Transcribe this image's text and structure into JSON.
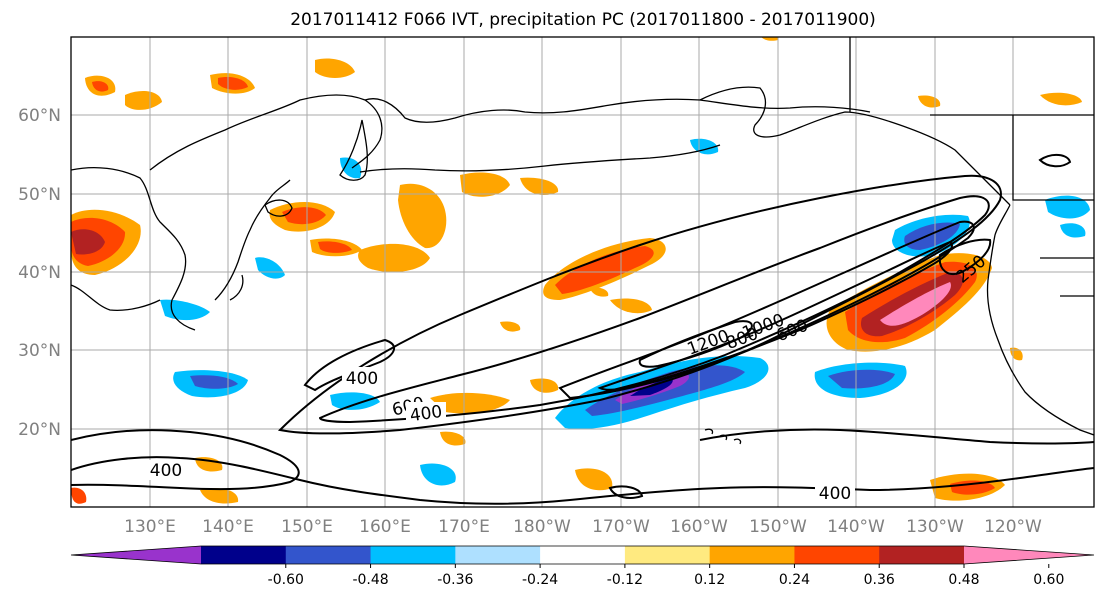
{
  "title": "2017011412 F066 IVT, precipitation PC (2017011800 - 2017011900)",
  "map": {
    "lon_ticks": [
      "130°E",
      "140°E",
      "150°E",
      "160°E",
      "170°E",
      "180°W",
      "170°W",
      "160°W",
      "150°W",
      "140°W",
      "130°W",
      "120°W"
    ],
    "lat_ticks": [
      "60°N",
      "50°N",
      "40°N",
      "30°N",
      "20°N"
    ],
    "gridlines": true
  },
  "ivt_contour_labels": [
    "400",
    "600",
    "400",
    "400",
    "400",
    "1200",
    "800",
    "1000",
    "600",
    "250"
  ],
  "colorbar": {
    "colors": [
      "#9933cc",
      "#00008b",
      "#3355cc",
      "#00bfff",
      "#aee0ff",
      "#ffffff",
      "#ffea80",
      "#ffa500",
      "#ff4500",
      "#b22222",
      "#ff88bb"
    ],
    "tick_labels": [
      "-0.60",
      "-0.48",
      "-0.36",
      "-0.24",
      "-0.12",
      "0.12",
      "0.24",
      "0.36",
      "0.48",
      "0.60"
    ],
    "extend": "both"
  }
}
